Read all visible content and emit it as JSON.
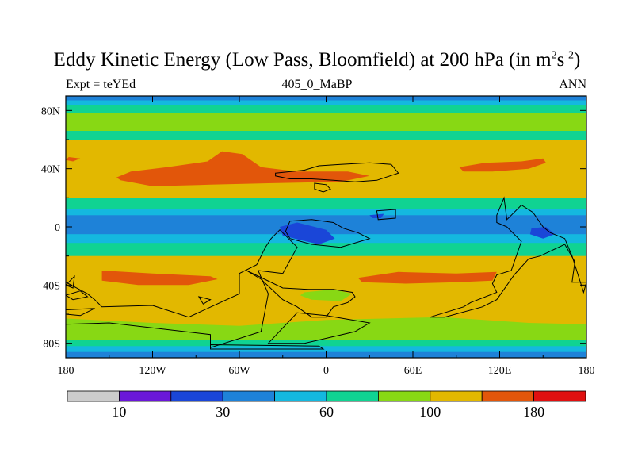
{
  "chart_data": {
    "type": "heatmap",
    "title_main": "Eddy Kinetic Energy (Low Pass, Bloomfield) at 200 hPa (in m",
    "title_unit_exp1": "2",
    "title_unit_s": "s",
    "title_unit_exp2": "-2",
    "title_close": ")",
    "left_label": "Expt = teYEd",
    "center_label": "405_0_MaBP",
    "right_label": "ANN",
    "xlim": [
      -180,
      180
    ],
    "ylim": [
      -90,
      90
    ],
    "x_ticks": [
      {
        "value": -180,
        "label": "180"
      },
      {
        "value": -120,
        "label": "120W"
      },
      {
        "value": -60,
        "label": "60W"
      },
      {
        "value": 0,
        "label": "0"
      },
      {
        "value": 60,
        "label": "60E"
      },
      {
        "value": 120,
        "label": "120E"
      },
      {
        "value": 180,
        "label": "180"
      }
    ],
    "y_ticks": [
      {
        "value": 80,
        "label": "80N"
      },
      {
        "value": 40,
        "label": "40N"
      },
      {
        "value": 0,
        "label": "0"
      },
      {
        "value": -40,
        "label": "40S"
      },
      {
        "value": -80,
        "label": "80S"
      }
    ],
    "colorbar": {
      "colors": [
        "#cccccc",
        "#6a17d8",
        "#1a46d8",
        "#1e82d8",
        "#14b8df",
        "#10d392",
        "#88d814",
        "#e2b800",
        "#e2560a",
        "#e01010"
      ],
      "levels": [
        0,
        10,
        20,
        30,
        45,
        60,
        80,
        100,
        140,
        180,
        220
      ],
      "labels": [
        {
          "boundary": 1,
          "text": "10"
        },
        {
          "boundary": 3,
          "text": "30"
        },
        {
          "boundary": 5,
          "text": "60"
        },
        {
          "boundary": 7,
          "text": "100"
        },
        {
          "boundary": 9,
          "text": "180"
        }
      ]
    },
    "latitude_bands": [
      {
        "from": 90,
        "to": 87,
        "value": 35
      },
      {
        "from": 87,
        "to": 84,
        "value": 55
      },
      {
        "from": 84,
        "to": 78,
        "value": 70
      },
      {
        "from": 78,
        "to": 66,
        "value": 90
      },
      {
        "from": 66,
        "to": 60,
        "value": 70
      },
      {
        "from": 60,
        "to": 20,
        "value": 120
      },
      {
        "from": 20,
        "to": 12,
        "value": 70
      },
      {
        "from": 12,
        "to": 8,
        "value": 55
      },
      {
        "from": 8,
        "to": -5,
        "value": 40
      },
      {
        "from": -5,
        "to": -11,
        "value": 55
      },
      {
        "from": -11,
        "to": -20,
        "value": 70
      },
      {
        "from": -20,
        "to": -70,
        "value": 120
      },
      {
        "from": -70,
        "to": -78,
        "value": 90
      },
      {
        "from": -78,
        "to": -82,
        "value": 70
      },
      {
        "from": -82,
        "to": -86,
        "value": 55
      },
      {
        "from": -86,
        "to": -90,
        "value": 35
      }
    ],
    "features": [
      {
        "value": 160,
        "points": [
          [
            -142,
            32
          ],
          [
            -120,
            28
          ],
          [
            -80,
            29
          ],
          [
            -40,
            30
          ],
          [
            10,
            31
          ],
          [
            30,
            35
          ],
          [
            15,
            38
          ],
          [
            -20,
            38
          ],
          [
            -45,
            41
          ],
          [
            -58,
            50
          ],
          [
            -72,
            52
          ],
          [
            -82,
            45
          ],
          [
            -110,
            41
          ],
          [
            -135,
            38
          ],
          [
            -145,
            34
          ]
        ]
      },
      {
        "value": 160,
        "points": [
          [
            -178,
            48
          ],
          [
            -170,
            47
          ],
          [
            -175,
            45
          ],
          [
            -180,
            46
          ]
        ]
      },
      {
        "value": 160,
        "points": [
          [
            92,
            41
          ],
          [
            110,
            44
          ],
          [
            135,
            45
          ],
          [
            150,
            47
          ],
          [
            152,
            44
          ],
          [
            140,
            40
          ],
          [
            115,
            38
          ],
          [
            95,
            38
          ]
        ]
      },
      {
        "value": 160,
        "points": [
          [
            -155,
            -30
          ],
          [
            -120,
            -32
          ],
          [
            -80,
            -34
          ],
          [
            -75,
            -36
          ],
          [
            -95,
            -40
          ],
          [
            -130,
            -40
          ],
          [
            -155,
            -37
          ]
        ]
      },
      {
        "value": 160,
        "points": [
          [
            22,
            -35
          ],
          [
            50,
            -31
          ],
          [
            90,
            -32
          ],
          [
            118,
            -31
          ],
          [
            115,
            -37
          ],
          [
            90,
            -38
          ],
          [
            55,
            -39
          ],
          [
            25,
            -38
          ]
        ]
      },
      {
        "value": 90,
        "points": [
          [
            -15,
            -45
          ],
          [
            5,
            -43
          ],
          [
            18,
            -46
          ],
          [
            10,
            -51
          ],
          [
            -10,
            -50
          ],
          [
            -18,
            -47
          ]
        ]
      },
      {
        "value": 90,
        "points": [
          [
            -180,
            -63
          ],
          [
            -120,
            -66
          ],
          [
            -60,
            -68
          ],
          [
            0,
            -64
          ],
          [
            80,
            -62
          ],
          [
            140,
            -66
          ],
          [
            180,
            -67
          ],
          [
            180,
            -72
          ],
          [
            -180,
            -72
          ]
        ]
      },
      {
        "value": 25,
        "points": [
          [
            -32,
            0
          ],
          [
            -20,
            3
          ],
          [
            -8,
            0
          ],
          [
            0,
            -2
          ],
          [
            6,
            -8
          ],
          [
            -5,
            -12
          ],
          [
            -18,
            -9
          ],
          [
            -30,
            -6
          ]
        ]
      },
      {
        "value": 25,
        "points": [
          [
            30,
            8
          ],
          [
            40,
            9
          ],
          [
            38,
            6
          ],
          [
            32,
            6
          ]
        ]
      },
      {
        "value": 25,
        "points": [
          [
            142,
            -1
          ],
          [
            152,
            0
          ],
          [
            158,
            -5
          ],
          [
            150,
            -8
          ],
          [
            141,
            -5
          ]
        ]
      }
    ],
    "continent_outlines": [
      [
        [
          -35,
          37
        ],
        [
          -15,
          39
        ],
        [
          -5,
          42
        ],
        [
          10,
          43
        ],
        [
          30,
          44
        ],
        [
          45,
          43
        ],
        [
          50,
          37
        ],
        [
          35,
          32
        ],
        [
          20,
          31
        ],
        [
          5,
          32
        ],
        [
          -10,
          33
        ],
        [
          -25,
          33
        ],
        [
          -35,
          35
        ]
      ],
      [
        [
          -8,
          30
        ],
        [
          0,
          29
        ],
        [
          3,
          26
        ],
        [
          -2,
          24
        ],
        [
          -8,
          26
        ]
      ],
      [
        [
          35,
          11
        ],
        [
          48,
          12
        ],
        [
          48,
          6
        ],
        [
          36,
          5
        ]
      ],
      [
        [
          -25,
          4
        ],
        [
          -10,
          5
        ],
        [
          5,
          3
        ],
        [
          12,
          -1
        ],
        [
          22,
          -4
        ],
        [
          30,
          -8
        ],
        [
          10,
          -14
        ],
        [
          -10,
          -12
        ],
        [
          -25,
          -8
        ],
        [
          -28,
          -3
        ]
      ],
      [
        [
          -32,
          -2
        ],
        [
          -20,
          -14
        ],
        [
          -30,
          -32
        ],
        [
          -47,
          -30
        ],
        [
          -40,
          -46
        ],
        [
          -45,
          -72
        ],
        [
          -80,
          -83
        ],
        [
          -80,
          -74
        ],
        [
          -150,
          -66
        ],
        [
          -180,
          -67
        ],
        [
          -180,
          -38
        ],
        [
          -165,
          -46
        ],
        [
          -160,
          -50
        ],
        [
          -155,
          -55
        ],
        [
          -120,
          -54
        ],
        [
          -95,
          -62
        ],
        [
          -60,
          -46
        ],
        [
          -60,
          -32
        ],
        [
          -48,
          -26
        ],
        [
          -42,
          -14
        ],
        [
          -38,
          -8
        ]
      ],
      [
        [
          -180,
          -47
        ],
        [
          -170,
          -44
        ],
        [
          -165,
          -48
        ],
        [
          -175,
          -50
        ]
      ],
      [
        [
          -180,
          -57
        ],
        [
          -160,
          -56
        ],
        [
          -170,
          -61
        ],
        [
          -180,
          -60
        ]
      ],
      [
        [
          -88,
          -48
        ],
        [
          -80,
          -50
        ],
        [
          -85,
          -53
        ]
      ],
      [
        [
          -55,
          -30
        ],
        [
          -45,
          -36
        ],
        [
          -30,
          -50
        ],
        [
          -20,
          -55
        ],
        [
          -10,
          -62
        ],
        [
          0,
          -62
        ],
        [
          5,
          -55
        ],
        [
          15,
          -52
        ],
        [
          20,
          -48
        ],
        [
          18,
          -45
        ],
        [
          5,
          -43
        ],
        [
          -12,
          -43
        ],
        [
          -30,
          -42
        ]
      ],
      [
        [
          -20,
          -59
        ],
        [
          0,
          -61
        ],
        [
          30,
          -66
        ],
        [
          20,
          -72
        ],
        [
          -15,
          -80
        ],
        [
          -40,
          -80
        ]
      ],
      [
        [
          -80,
          -81
        ],
        [
          -5,
          -82
        ],
        [
          -2,
          -84
        ],
        [
          -80,
          -84
        ]
      ],
      [
        [
          72,
          -62
        ],
        [
          95,
          -55
        ],
        [
          100,
          -52
        ],
        [
          118,
          -45
        ],
        [
          115,
          -39
        ],
        [
          118,
          -33
        ],
        [
          128,
          -30
        ],
        [
          135,
          -10
        ],
        [
          125,
          0
        ],
        [
          118,
          3
        ],
        [
          118,
          8
        ],
        [
          123,
          20
        ],
        [
          125,
          5
        ],
        [
          130,
          10
        ],
        [
          135,
          15
        ],
        [
          143,
          10
        ],
        [
          150,
          0
        ],
        [
          155,
          -4
        ],
        [
          165,
          -8
        ],
        [
          170,
          -20
        ],
        [
          178,
          -45
        ],
        [
          180,
          -38
        ],
        [
          170,
          -38
        ],
        [
          172,
          -24
        ],
        [
          165,
          -12
        ],
        [
          148,
          -20
        ],
        [
          140,
          -22
        ],
        [
          130,
          -33
        ],
        [
          118,
          -50
        ],
        [
          108,
          -55
        ],
        [
          82,
          -62
        ]
      ],
      [
        [
          -180,
          -40
        ],
        [
          -174,
          -34
        ],
        [
          -175,
          -42
        ]
      ]
    ]
  }
}
